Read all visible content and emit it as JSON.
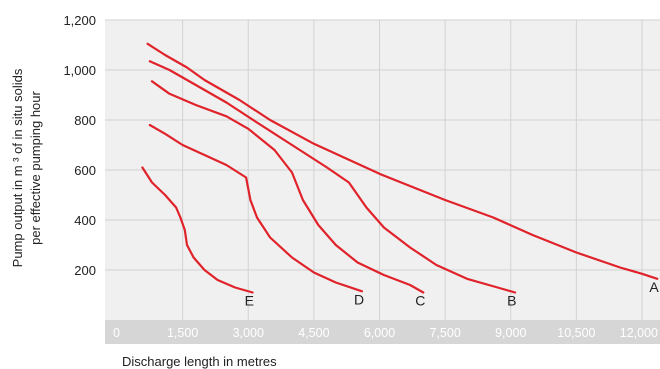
{
  "chart_data": {
    "type": "line",
    "xlabel": "Discharge length in metres",
    "ylabel_lines": [
      "Pump output in m ³ of in situ solids",
      "per effective pumping hour"
    ],
    "xlim": [
      0,
      12000
    ],
    "ylim": [
      0,
      1200
    ],
    "x_ticks": [
      "0",
      "1,500",
      "3,000",
      "4,500",
      "6,000",
      "7,500",
      "9,000",
      "10,500",
      "12,000"
    ],
    "y_ticks": [
      "200",
      "400",
      "600",
      "800",
      "1,000",
      "1,200"
    ],
    "series": [
      {
        "name": "A",
        "points": [
          [
            700,
            1105
          ],
          [
            1100,
            1060
          ],
          [
            1600,
            1010
          ],
          [
            2000,
            960
          ],
          [
            2800,
            880
          ],
          [
            3500,
            800
          ],
          [
            4500,
            705
          ],
          [
            6000,
            585
          ],
          [
            7500,
            480
          ],
          [
            8600,
            410
          ],
          [
            9500,
            340
          ],
          [
            10500,
            270
          ],
          [
            11500,
            210
          ],
          [
            12000,
            185
          ],
          [
            12350,
            165
          ]
        ]
      },
      {
        "name": "B",
        "points": [
          [
            750,
            1035
          ],
          [
            1200,
            1000
          ],
          [
            1800,
            940
          ],
          [
            2500,
            870
          ],
          [
            3200,
            790
          ],
          [
            4000,
            700
          ],
          [
            4800,
            610
          ],
          [
            5300,
            550
          ],
          [
            5700,
            450
          ],
          [
            6100,
            370
          ],
          [
            6700,
            290
          ],
          [
            7300,
            220
          ],
          [
            8000,
            165
          ],
          [
            8700,
            130
          ],
          [
            9100,
            110
          ]
        ]
      },
      {
        "name": "C",
        "points": [
          [
            800,
            955
          ],
          [
            1200,
            905
          ],
          [
            1800,
            860
          ],
          [
            2500,
            815
          ],
          [
            3000,
            765
          ],
          [
            3600,
            680
          ],
          [
            4000,
            590
          ],
          [
            4250,
            480
          ],
          [
            4600,
            380
          ],
          [
            5000,
            300
          ],
          [
            5500,
            230
          ],
          [
            6100,
            180
          ],
          [
            6700,
            140
          ],
          [
            7000,
            110
          ]
        ]
      },
      {
        "name": "D",
        "points": [
          [
            750,
            780
          ],
          [
            1100,
            745
          ],
          [
            1500,
            700
          ],
          [
            2000,
            660
          ],
          [
            2500,
            620
          ],
          [
            2950,
            570
          ],
          [
            3050,
            480
          ],
          [
            3200,
            410
          ],
          [
            3500,
            330
          ],
          [
            4000,
            250
          ],
          [
            4500,
            190
          ],
          [
            5000,
            150
          ],
          [
            5600,
            115
          ]
        ]
      },
      {
        "name": "E",
        "points": [
          [
            580,
            610
          ],
          [
            800,
            550
          ],
          [
            1100,
            500
          ],
          [
            1350,
            450
          ],
          [
            1450,
            410
          ],
          [
            1550,
            360
          ],
          [
            1600,
            300
          ],
          [
            1750,
            250
          ],
          [
            2000,
            200
          ],
          [
            2300,
            160
          ],
          [
            2700,
            130
          ],
          [
            3100,
            110
          ]
        ]
      }
    ]
  }
}
